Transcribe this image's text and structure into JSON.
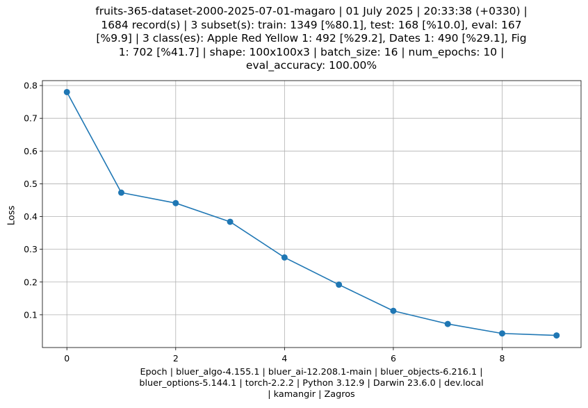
{
  "chart_data": {
    "type": "line",
    "title": "fruits-365-dataset-2000-2025-07-01-magaro | 01 July 2025 | 20:33:38 (+0330) |\n1684 record(s) | 3 subset(s): train: 1349 [%80.1], test: 168 [%10.0], eval: 167\n[%9.9] | 3 class(es): Apple Red Yellow 1: 492 [%29.2], Dates 1: 490 [%29.1], Fig\n1: 702 [%41.7] | shape: 100x100x3 | batch_size: 16 | num_epochs: 10 |\neval_accuracy: 100.00%",
    "xlabel": "Epoch | bluer_algo-4.155.1 | bluer_ai-12.208.1-main | bluer_objects-6.216.1 |\nbluer_options-5.144.1 | torch-2.2.2 | Python 3.12.9 | Darwin 23.6.0 | dev.local\n| kamangir | Zagros",
    "ylabel": "Loss",
    "x": [
      0,
      1,
      2,
      3,
      4,
      5,
      6,
      7,
      8,
      9
    ],
    "series": [
      {
        "values": [
          0.78,
          0.473,
          0.441,
          0.384,
          0.275,
          0.192,
          0.112,
          0.072,
          0.043,
          0.037
        ]
      }
    ],
    "xlim": [
      -0.45,
      9.45
    ],
    "ylim": [
      0.0,
      0.815
    ],
    "xticks": [
      0,
      2,
      4,
      6,
      8
    ],
    "yticks": [
      0.1,
      0.2,
      0.3,
      0.4,
      0.5,
      0.6,
      0.7,
      0.8
    ],
    "ytick_labels": [
      "0.1",
      "0.2",
      "0.3",
      "0.4",
      "0.5",
      "0.6",
      "0.7",
      "0.8"
    ],
    "grid": true,
    "colors": {
      "line": "#1f77b4",
      "grid": "#b0b0b0"
    }
  }
}
